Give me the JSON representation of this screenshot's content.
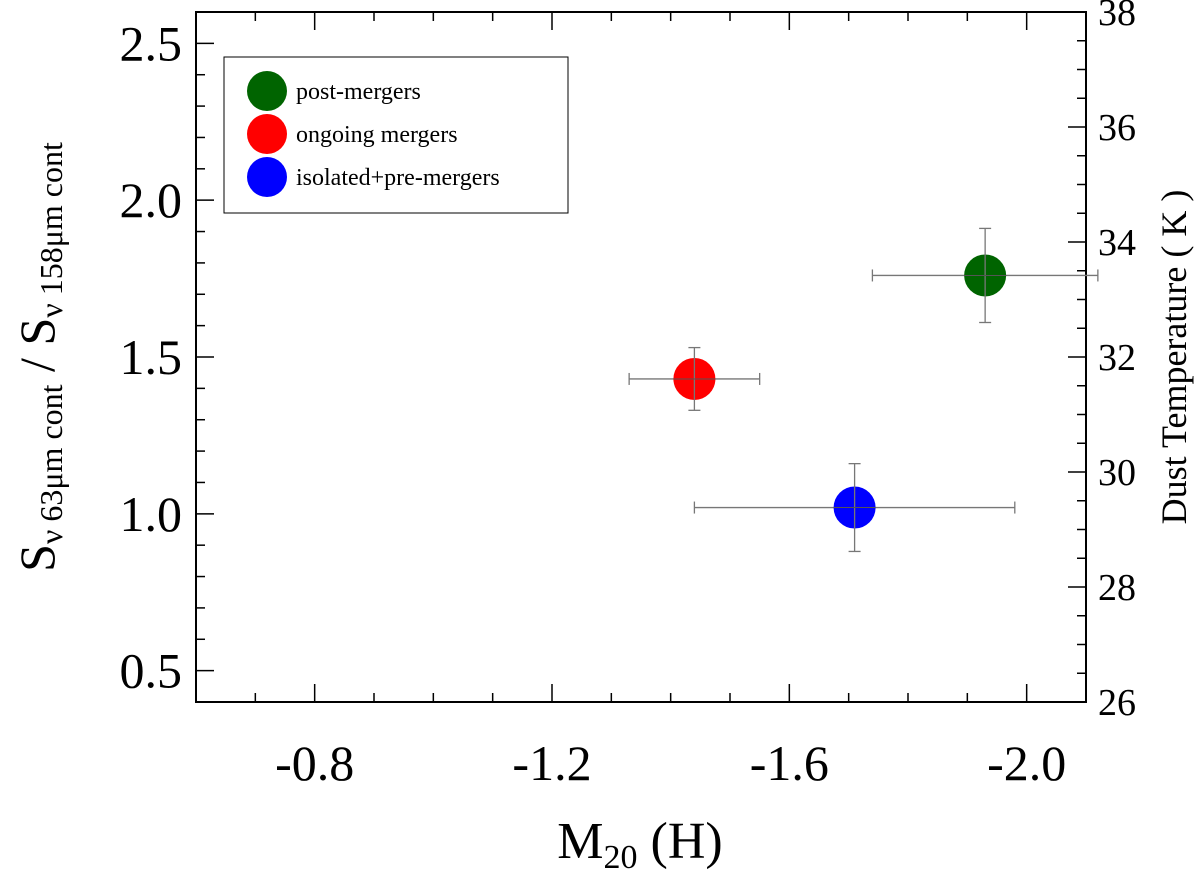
{
  "chart_data": {
    "type": "scatter",
    "title": "",
    "xlabel": {
      "main": "M",
      "sub": "20",
      "suffix": " (H)"
    },
    "ylabel": {
      "s1": "S",
      "sub1": "ν 63μm cont",
      "sep": " / ",
      "s2": "S",
      "sub2": "ν 158μm cont"
    },
    "y2label": "Dust Temperature ( K )",
    "xlim": [
      -0.6,
      -2.1
    ],
    "ylim": [
      0.4,
      2.6
    ],
    "y2lim": [
      26,
      38
    ],
    "x_ticks": [
      "-0.8",
      "-1.2",
      "-1.6",
      "-2.0"
    ],
    "x_tick_values": [
      -0.8,
      -1.2,
      -1.6,
      -2.0
    ],
    "y_ticks": [
      "0.5",
      "1.0",
      "1.5",
      "2.0",
      "2.5"
    ],
    "y_tick_values": [
      0.5,
      1.0,
      1.5,
      2.0,
      2.5
    ],
    "y2_ticks": [
      "26",
      "28",
      "30",
      "32",
      "34",
      "36",
      "38"
    ],
    "y2_tick_values": [
      26,
      28,
      30,
      32,
      34,
      36,
      38
    ],
    "series": [
      {
        "name": "post-mergers",
        "color": "#006400",
        "x": -1.93,
        "y": 1.76,
        "xerr": 0.19,
        "yerr": 0.15
      },
      {
        "name": "ongoing mergers",
        "color": "#ff0000",
        "x": -1.44,
        "y": 1.43,
        "xerr": 0.11,
        "yerr": 0.1
      },
      {
        "name": "isolated+pre-mergers",
        "color": "#0000ff",
        "x": -1.71,
        "y": 1.02,
        "xerr": 0.27,
        "yerr": 0.14
      }
    ],
    "legend": "top-left"
  }
}
